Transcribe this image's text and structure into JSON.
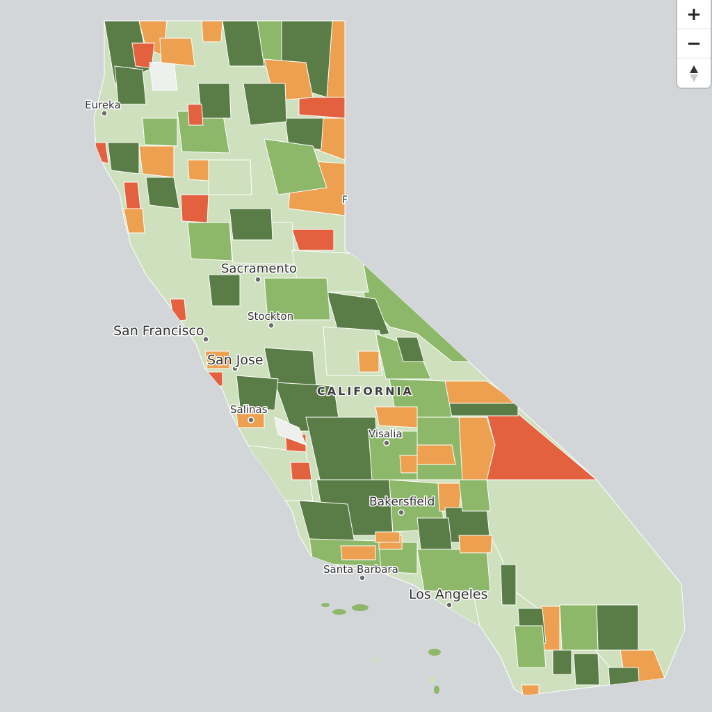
{
  "map": {
    "state_label": "CALIFORNIA",
    "cities": [
      "Eureka",
      "Sacramento",
      "Stockton",
      "San Francisco",
      "San Jose",
      "Salinas",
      "Visalia",
      "Bakersfield",
      "Santa Barbara",
      "Los Angeles"
    ],
    "fill_classes": {
      "dark_green": "#5a7d47",
      "medium_green": "#8db86a",
      "light_green": "#cfe0be",
      "orange": "#eda050",
      "red_orange": "#e3613f",
      "gray_white": "#eef0ee"
    },
    "edge_label": "F"
  },
  "controls": {
    "zoom_in": "+",
    "zoom_out": "−"
  }
}
